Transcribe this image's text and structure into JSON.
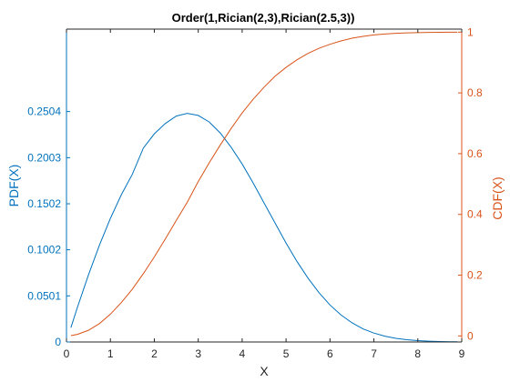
{
  "chart_data": {
    "type": "line",
    "title": "Order(1,Rician(2,3),Rician(2.5,3))",
    "xlabel": "X",
    "ylabel_left": "PDF(X)",
    "ylabel_right": "CDF(X)",
    "xlim": [
      0,
      9
    ],
    "ylim_left": [
      0,
      0.34
    ],
    "ylim_right": [
      -0.02,
      1.01
    ],
    "x_ticks": [
      "0",
      "1",
      "2",
      "3",
      "4",
      "5",
      "6",
      "7",
      "8",
      "9"
    ],
    "y_left_ticks": [
      "0",
      "0.0501",
      "0.1002",
      "0.1502",
      "0.2003",
      "0.2504"
    ],
    "y_right_ticks": [
      "0",
      "0.2",
      "0.4",
      "0.6",
      "0.8",
      "1"
    ],
    "grid": false,
    "colors": {
      "left": "#0072BD",
      "right": "#D95319",
      "axis": "#262626"
    },
    "series": [
      {
        "axis": "left",
        "x": [
          0.1,
          0.25,
          0.5,
          0.75,
          1.0,
          1.25,
          1.5,
          1.75,
          2.0,
          2.25,
          2.5,
          2.75,
          3.0,
          3.25,
          3.5,
          3.75,
          4.0,
          4.25,
          4.5,
          4.75,
          5.0,
          5.25,
          5.5,
          5.75,
          6.0,
          6.25,
          6.5,
          6.75,
          7.0,
          7.25,
          7.5,
          7.75,
          8.0,
          8.25,
          8.5,
          8.75,
          8.9
        ],
        "values": [
          0.0155,
          0.0378,
          0.0728,
          0.1052,
          0.1343,
          0.1601,
          0.1823,
          0.2107,
          0.2262,
          0.2374,
          0.2455,
          0.2485,
          0.2462,
          0.2391,
          0.2272,
          0.2116,
          0.1934,
          0.1728,
          0.151,
          0.1292,
          0.1075,
          0.0874,
          0.0694,
          0.0536,
          0.0402,
          0.0294,
          0.0209,
          0.0143,
          0.0097,
          0.0063,
          0.004,
          0.0025,
          0.0015,
          0.0009,
          0.0005,
          0.0003,
          0.0002
        ]
      },
      {
        "axis": "right",
        "x": [
          0.1,
          0.25,
          0.5,
          0.75,
          1.0,
          1.25,
          1.5,
          1.75,
          2.0,
          2.25,
          2.5,
          2.75,
          3.0,
          3.25,
          3.5,
          3.75,
          4.0,
          4.25,
          4.5,
          4.75,
          5.0,
          5.25,
          5.5,
          5.75,
          6.0,
          6.25,
          6.5,
          6.75,
          7.0,
          7.25,
          7.5,
          7.75,
          8.0,
          8.25,
          8.5,
          8.75,
          8.9
        ],
        "values": [
          0.0008,
          0.005,
          0.0185,
          0.0405,
          0.0716,
          0.11,
          0.154,
          0.205,
          0.26,
          0.319,
          0.38,
          0.44,
          0.508,
          0.57,
          0.628,
          0.683,
          0.734,
          0.779,
          0.819,
          0.855,
          0.884,
          0.909,
          0.93,
          0.947,
          0.96,
          0.971,
          0.98,
          0.986,
          0.991,
          0.994,
          0.996,
          0.9975,
          0.9985,
          0.999,
          0.9995,
          0.9998,
          0.9999
        ]
      }
    ]
  }
}
